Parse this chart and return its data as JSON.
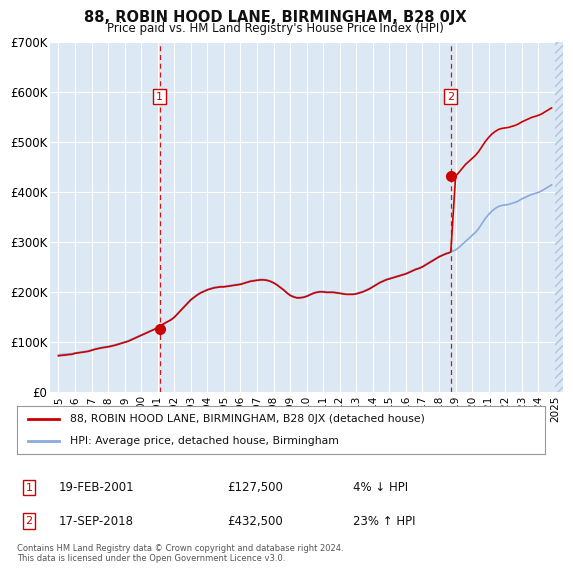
{
  "title": "88, ROBIN HOOD LANE, BIRMINGHAM, B28 0JX",
  "subtitle": "Price paid vs. HM Land Registry's House Price Index (HPI)",
  "ylim": [
    0,
    700000
  ],
  "yticks": [
    0,
    100000,
    200000,
    300000,
    400000,
    500000,
    600000,
    700000
  ],
  "ytick_labels": [
    "£0",
    "£100K",
    "£200K",
    "£300K",
    "£400K",
    "£500K",
    "£600K",
    "£700K"
  ],
  "xlim_start": 1994.5,
  "xlim_end": 2025.5,
  "background_color": "#ffffff",
  "plot_bg_color": "#dce9f5",
  "grid_color": "#ffffff",
  "red_color": "#cc0000",
  "blue_color": "#88aadd",
  "sale1_x": 2001.12,
  "sale1_y": 127500,
  "sale2_x": 2018.71,
  "sale2_y": 432500,
  "legend_line1": "88, ROBIN HOOD LANE, BIRMINGHAM, B28 0JX (detached house)",
  "legend_line2": "HPI: Average price, detached house, Birmingham",
  "sale1_date": "19-FEB-2001",
  "sale1_price": "£127,500",
  "sale1_hpi": "4% ↓ HPI",
  "sale2_date": "17-SEP-2018",
  "sale2_price": "£432,500",
  "sale2_hpi": "23% ↑ HPI",
  "footer": "Contains HM Land Registry data © Crown copyright and database right 2024.\nThis data is licensed under the Open Government Licence v3.0.",
  "hpi_years": [
    1995.0,
    1995.2,
    1995.4,
    1995.6,
    1995.8,
    1996.0,
    1996.2,
    1996.4,
    1996.6,
    1996.8,
    1997.0,
    1997.2,
    1997.4,
    1997.6,
    1997.8,
    1998.0,
    1998.2,
    1998.4,
    1998.6,
    1998.8,
    1999.0,
    1999.2,
    1999.4,
    1999.6,
    1999.8,
    2000.0,
    2000.2,
    2000.4,
    2000.6,
    2000.8,
    2001.0,
    2001.2,
    2001.4,
    2001.6,
    2001.8,
    2002.0,
    2002.2,
    2002.4,
    2002.6,
    2002.8,
    2003.0,
    2003.2,
    2003.4,
    2003.6,
    2003.8,
    2004.0,
    2004.2,
    2004.4,
    2004.6,
    2004.8,
    2005.0,
    2005.2,
    2005.4,
    2005.6,
    2005.8,
    2006.0,
    2006.2,
    2006.4,
    2006.6,
    2006.8,
    2007.0,
    2007.2,
    2007.4,
    2007.6,
    2007.8,
    2008.0,
    2008.2,
    2008.4,
    2008.6,
    2008.8,
    2009.0,
    2009.2,
    2009.4,
    2009.6,
    2009.8,
    2010.0,
    2010.2,
    2010.4,
    2010.6,
    2010.8,
    2011.0,
    2011.2,
    2011.4,
    2011.6,
    2011.8,
    2012.0,
    2012.2,
    2012.4,
    2012.6,
    2012.8,
    2013.0,
    2013.2,
    2013.4,
    2013.6,
    2013.8,
    2014.0,
    2014.2,
    2014.4,
    2014.6,
    2014.8,
    2015.0,
    2015.2,
    2015.4,
    2015.6,
    2015.8,
    2016.0,
    2016.2,
    2016.4,
    2016.6,
    2016.8,
    2017.0,
    2017.2,
    2017.4,
    2017.6,
    2017.8,
    2018.0,
    2018.2,
    2018.4,
    2018.6,
    2018.8,
    2019.0,
    2019.2,
    2019.4,
    2019.6,
    2019.8,
    2020.0,
    2020.2,
    2020.4,
    2020.6,
    2020.8,
    2021.0,
    2021.2,
    2021.4,
    2021.6,
    2021.8,
    2022.0,
    2022.2,
    2022.4,
    2022.6,
    2022.8,
    2023.0,
    2023.2,
    2023.4,
    2023.6,
    2023.8,
    2024.0,
    2024.2,
    2024.4,
    2024.6,
    2024.8
  ],
  "hpi_values": [
    75000,
    76000,
    76500,
    77000,
    77500,
    79000,
    80000,
    81000,
    82000,
    83000,
    85000,
    87000,
    88500,
    90000,
    91000,
    92000,
    93500,
    95000,
    97000,
    99000,
    101000,
    103000,
    106000,
    109000,
    112000,
    115000,
    118000,
    121000,
    124000,
    127000,
    130000,
    133000,
    137000,
    141000,
    146000,
    151000,
    158000,
    165000,
    172000,
    179000,
    186000,
    191000,
    196000,
    200000,
    203000,
    206000,
    208000,
    210000,
    211000,
    212000,
    212000,
    213000,
    214000,
    215000,
    216000,
    217000,
    219000,
    221000,
    223000,
    224000,
    225000,
    226000,
    226000,
    225000,
    223000,
    220000,
    216000,
    211000,
    206000,
    200000,
    195000,
    192000,
    190000,
    190000,
    191000,
    193000,
    196000,
    199000,
    201000,
    202000,
    202000,
    201000,
    201000,
    201000,
    200000,
    199000,
    198000,
    197000,
    197000,
    197000,
    198000,
    200000,
    202000,
    205000,
    208000,
    212000,
    216000,
    220000,
    223000,
    226000,
    228000,
    230000,
    232000,
    234000,
    236000,
    238000,
    241000,
    244000,
    247000,
    249000,
    252000,
    256000,
    260000,
    264000,
    268000,
    272000,
    275000,
    278000,
    280000,
    282000,
    285000,
    290000,
    296000,
    302000,
    308000,
    314000,
    320000,
    328000,
    338000,
    348000,
    356000,
    363000,
    368000,
    372000,
    374000,
    375000,
    376000,
    378000,
    380000,
    383000,
    387000,
    390000,
    393000,
    396000,
    398000,
    400000,
    403000,
    407000,
    411000,
    415000
  ],
  "red_years": [
    1995.0,
    1995.2,
    1995.4,
    1995.6,
    1995.8,
    1996.0,
    1996.2,
    1996.4,
    1996.6,
    1996.8,
    1997.0,
    1997.2,
    1997.4,
    1997.6,
    1997.8,
    1998.0,
    1998.2,
    1998.4,
    1998.6,
    1998.8,
    1999.0,
    1999.2,
    1999.4,
    1999.6,
    1999.8,
    2000.0,
    2000.2,
    2000.4,
    2000.6,
    2000.8,
    2001.0,
    2001.12,
    2001.3,
    2001.5,
    2001.8,
    2002.0,
    2002.2,
    2002.4,
    2002.6,
    2002.8,
    2003.0,
    2003.2,
    2003.4,
    2003.6,
    2003.8,
    2004.0,
    2004.2,
    2004.4,
    2004.6,
    2004.8,
    2005.0,
    2005.2,
    2005.4,
    2005.6,
    2005.8,
    2006.0,
    2006.2,
    2006.4,
    2006.6,
    2006.8,
    2007.0,
    2007.2,
    2007.4,
    2007.6,
    2007.8,
    2008.0,
    2008.2,
    2008.4,
    2008.6,
    2008.8,
    2009.0,
    2009.2,
    2009.4,
    2009.6,
    2009.8,
    2010.0,
    2010.2,
    2010.4,
    2010.6,
    2010.8,
    2011.0,
    2011.2,
    2011.4,
    2011.6,
    2011.8,
    2012.0,
    2012.2,
    2012.4,
    2012.6,
    2012.8,
    2013.0,
    2013.2,
    2013.4,
    2013.6,
    2013.8,
    2014.0,
    2014.2,
    2014.4,
    2014.6,
    2014.8,
    2015.0,
    2015.2,
    2015.4,
    2015.6,
    2015.8,
    2016.0,
    2016.2,
    2016.4,
    2016.6,
    2016.8,
    2017.0,
    2017.2,
    2017.4,
    2017.6,
    2017.8,
    2018.0,
    2018.2,
    2018.4,
    2018.6,
    2018.71,
    2019.0,
    2019.2,
    2019.4,
    2019.6,
    2019.8,
    2020.0,
    2020.2,
    2020.4,
    2020.6,
    2020.8,
    2021.0,
    2021.2,
    2021.4,
    2021.6,
    2021.8,
    2022.0,
    2022.2,
    2022.4,
    2022.6,
    2022.8,
    2023.0,
    2023.2,
    2023.4,
    2023.6,
    2023.8,
    2024.0,
    2024.2,
    2024.4,
    2024.6,
    2024.8
  ],
  "red_values": [
    73000,
    74000,
    74500,
    75500,
    76000,
    78000,
    79000,
    80000,
    81000,
    82000,
    84000,
    86000,
    87500,
    89000,
    90000,
    91000,
    92500,
    94000,
    96000,
    98000,
    100000,
    102000,
    105000,
    108000,
    111000,
    114000,
    117000,
    120000,
    123000,
    126000,
    129000,
    127500,
    136000,
    140000,
    145000,
    150000,
    157000,
    164000,
    171000,
    178000,
    185000,
    190000,
    195000,
    199000,
    202000,
    205000,
    207000,
    209000,
    210000,
    211000,
    211000,
    212000,
    213000,
    214000,
    215000,
    216000,
    218000,
    220000,
    222000,
    223000,
    224000,
    225000,
    225000,
    224000,
    222000,
    219000,
    215000,
    210000,
    205000,
    199000,
    194000,
    191000,
    189000,
    189000,
    190000,
    192000,
    195000,
    198000,
    200000,
    201000,
    201000,
    200000,
    200000,
    200000,
    199000,
    198000,
    197000,
    196000,
    196000,
    196000,
    197000,
    199000,
    201000,
    204000,
    207000,
    211000,
    215000,
    219000,
    222000,
    225000,
    227000,
    229000,
    231000,
    233000,
    235000,
    237000,
    240000,
    243000,
    246000,
    248000,
    251000,
    255000,
    259000,
    263000,
    267000,
    271000,
    274000,
    277000,
    279000,
    281000,
    432500,
    440000,
    448000,
    456000,
    462000,
    468000,
    474000,
    482000,
    492000,
    502000,
    510000,
    517000,
    522000,
    526000,
    528000,
    529000,
    530000,
    532000,
    534000,
    537000,
    541000,
    544000,
    547000,
    550000,
    552000,
    554000,
    557000,
    561000,
    565000,
    569000
  ]
}
